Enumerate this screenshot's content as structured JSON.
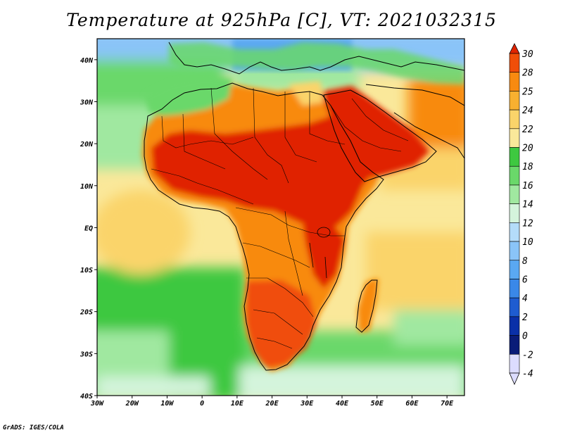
{
  "title": "Temperature at 925hPa [C], VT: 2021032315",
  "credit": "GrADS: IGES/COLA",
  "map": {
    "lon_ticks": [
      "30W",
      "20W",
      "10W",
      "0",
      "10E",
      "20E",
      "30E",
      "40E",
      "50E",
      "60E",
      "70E"
    ],
    "lat_ticks": [
      "40N",
      "30N",
      "20N",
      "10N",
      "EQ",
      "10S",
      "20S",
      "30S",
      "40S"
    ],
    "lon_range": [
      -30,
      75
    ],
    "lat_range": [
      -40,
      45
    ]
  },
  "colorbar": {
    "levels": [
      "30",
      "28",
      "25",
      "24",
      "22",
      "20",
      "18",
      "16",
      "14",
      "12",
      "10",
      "8",
      "6",
      "4",
      "2",
      "0",
      "-2",
      "-4"
    ],
    "colors": [
      "#e02400",
      "#f04e08",
      "#f88a10",
      "#f8b030",
      "#fad46a",
      "#fae89a",
      "#3ec840",
      "#6ad86a",
      "#a0e8a0",
      "#d4f4dc",
      "#b4dcfa",
      "#8ac4f8",
      "#5aa8f2",
      "#3a88e8",
      "#1e5cd0",
      "#0a30a8",
      "#0a1c78",
      "#dcdcff"
    ]
  },
  "field_colors": {
    "ocean_cool": "#3ec840",
    "ocean_mild": "#a0e8a0",
    "ocean_warm": "#fae89a",
    "land_hot": "#e02400",
    "land_warm": "#f88a10",
    "med_cold": "#5aa8f2"
  }
}
